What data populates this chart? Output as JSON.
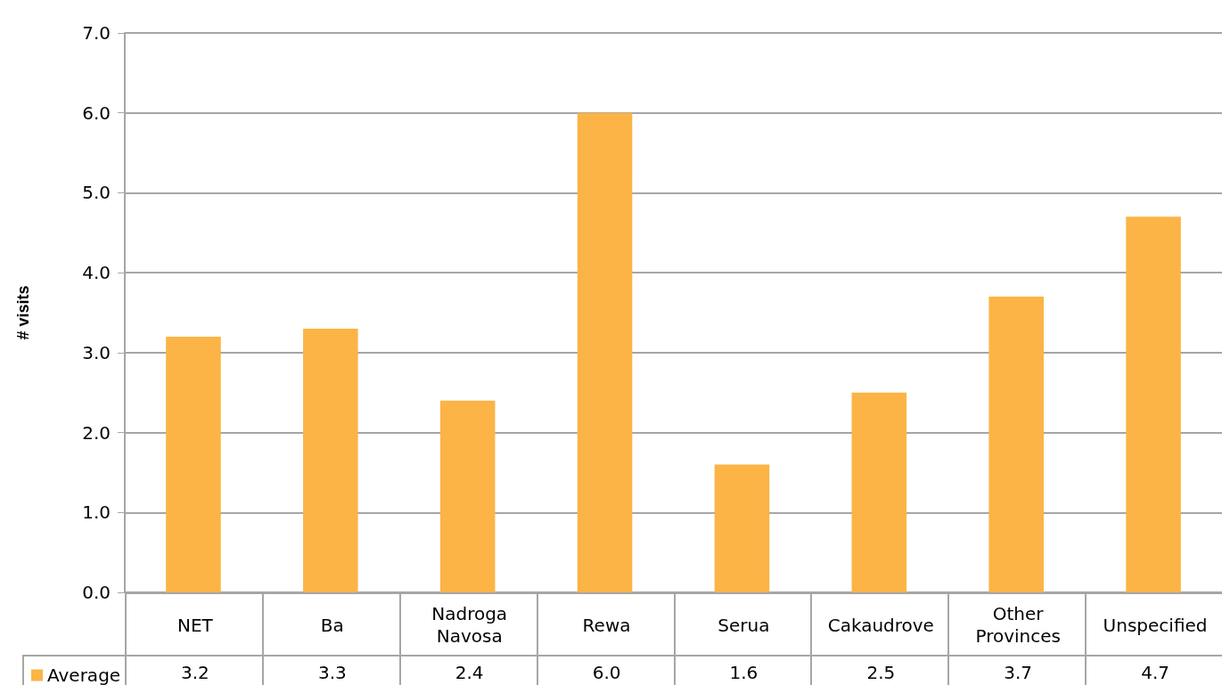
{
  "chart_data": {
    "type": "bar",
    "ylabel": "# visits",
    "categories": [
      "NET",
      "Ba",
      "Nadroga Navosa",
      "Rewa",
      "Serua",
      "Cakaudrove",
      "Other Provinces",
      "Unspecified"
    ],
    "series": [
      {
        "name": "Average",
        "color": "#fbb445",
        "values": [
          3.2,
          3.3,
          2.4,
          6.0,
          1.6,
          2.5,
          3.7,
          4.7
        ],
        "value_labels": [
          "3.2",
          "3.3",
          "2.4",
          "6.0",
          "1.6",
          "2.5",
          "3.7",
          "4.7"
        ]
      }
    ],
    "ylim": [
      0,
      7
    ],
    "yticks": [
      {
        "value": 0,
        "label": "0.0"
      },
      {
        "value": 1,
        "label": "1.0"
      },
      {
        "value": 2,
        "label": "2.0"
      },
      {
        "value": 3,
        "label": "3.0"
      },
      {
        "value": 4,
        "label": "4.0"
      },
      {
        "value": 5,
        "label": "5.0"
      },
      {
        "value": 6,
        "label": "6.0"
      },
      {
        "value": 7,
        "label": "7.0"
      }
    ],
    "grid": "y",
    "legend": "bottom left"
  }
}
